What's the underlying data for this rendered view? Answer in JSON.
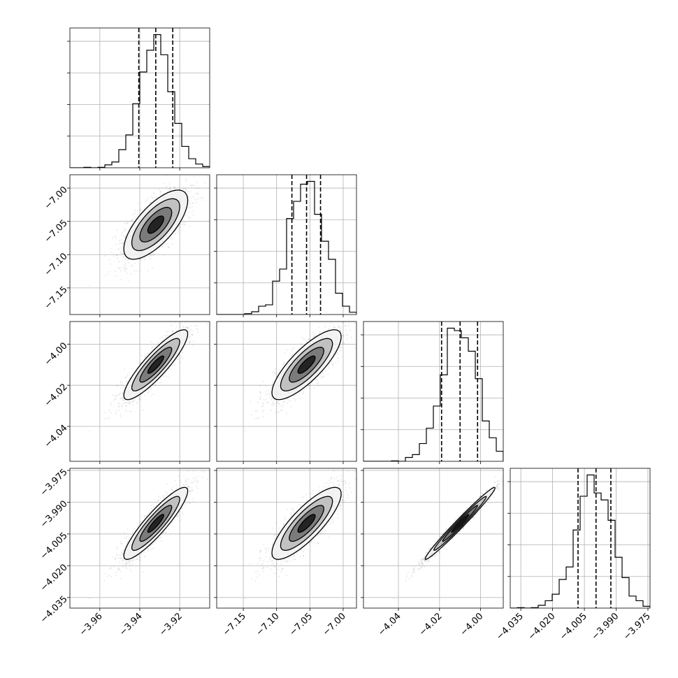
{
  "chart_data": {
    "type": "corner",
    "parameters": 4,
    "grid": true,
    "colors": {
      "ink": "#000000",
      "grid": "#b0b0b0",
      "dots": "#000000"
    },
    "axes": [
      {
        "range": [
          -3.975,
          -3.905
        ],
        "ticks": [
          -3.96,
          -3.94,
          -3.92
        ],
        "tick_labels": [
          "−3.96",
          "−3.94",
          "−3.92"
        ]
      },
      {
        "range": [
          -7.19,
          -6.98
        ],
        "ticks": [
          -7.15,
          -7.1,
          -7.05,
          -7.0
        ],
        "tick_labels": [
          "−7.15",
          "−7.10",
          "−7.05",
          "−7.00"
        ]
      },
      {
        "range": [
          -4.057,
          -3.989
        ],
        "ticks": [
          -4.04,
          -4.02,
          -4.0
        ],
        "tick_labels": [
          "−4.04",
          "−4.02",
          "−4.00"
        ]
      },
      {
        "range": [
          -4.04,
          -3.974
        ],
        "ticks": [
          -4.035,
          -4.02,
          -4.005,
          -3.99,
          -3.975
        ],
        "tick_labels": [
          "−4.035",
          "−4.020",
          "−4.005",
          "−3.990",
          "−3.975"
        ]
      }
    ],
    "stats": [
      {
        "mean": -3.932,
        "sd": 0.008,
        "q16": -3.9405,
        "q50": -3.932,
        "q84": -3.9235
      },
      {
        "mean": -7.055,
        "sd": 0.026,
        "q16": -7.077,
        "q50": -7.055,
        "q84": -7.034
      },
      {
        "mean": -4.01,
        "sd": 0.0085,
        "q16": -4.019,
        "q50": -4.01,
        "q84": -4.0015
      },
      {
        "mean": -4.0,
        "sd": 0.0085,
        "q16": -4.008,
        "q50": -3.9995,
        "q84": -3.9925
      }
    ],
    "correlations": [
      [
        1.0,
        0.7,
        0.88,
        0.9
      ],
      [
        0.7,
        1.0,
        0.8,
        0.82
      ],
      [
        0.88,
        0.8,
        1.0,
        0.985
      ],
      [
        0.9,
        0.82,
        0.985,
        1.0
      ]
    ],
    "histogram_bins": 20,
    "quantiles": [
      0.16,
      0.5,
      0.84
    ],
    "contour_levels_sigma": [
      0.5,
      1.0,
      1.5,
      2.0
    ]
  }
}
